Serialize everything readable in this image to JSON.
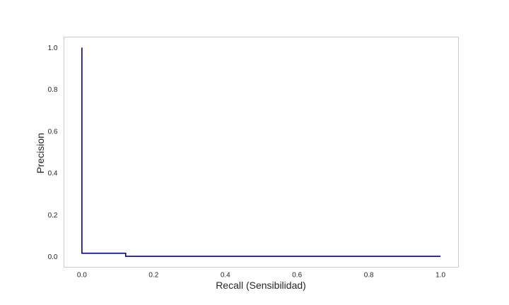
{
  "chart_data": {
    "type": "line",
    "title": "",
    "xlabel": "Recall (Sensibilidad)",
    "ylabel": "Precision",
    "xlim": [
      -0.05,
      1.05
    ],
    "ylim": [
      -0.05,
      1.05
    ],
    "xticks": [
      0.0,
      0.2,
      0.4,
      0.6,
      0.8,
      1.0
    ],
    "xtick_labels": [
      "0.0",
      "0.2",
      "0.4",
      "0.6",
      "0.8",
      "1.0"
    ],
    "yticks": [
      0.0,
      0.2,
      0.4,
      0.6,
      0.8,
      1.0
    ],
    "ytick_labels": [
      "0.0",
      "0.2",
      "0.4",
      "0.6",
      "0.8",
      "1.0"
    ],
    "grid": false,
    "legend": "none",
    "series": [
      {
        "color": "#00007f",
        "step": true,
        "x": [
          0.0,
          0.0,
          0.0,
          0.122,
          0.122,
          1.0
        ],
        "y": [
          1.0,
          0.0167,
          0.0167,
          0.0167,
          0.002,
          0.002
        ]
      }
    ]
  }
}
